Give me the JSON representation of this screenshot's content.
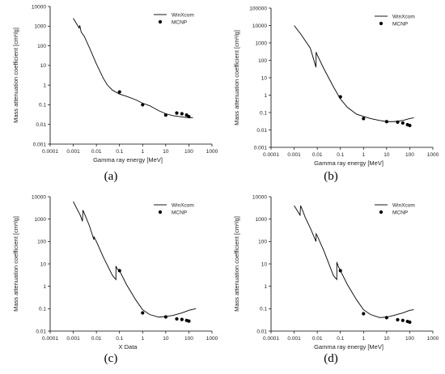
{
  "chart_data": [
    {
      "type": "line",
      "panel_label": "(a)",
      "xlabel": "Gamma ray energy [MeV]",
      "ylabel": "Mass attenuation coefficient [cm²/g]",
      "xscale": "log",
      "yscale": "log",
      "xlim": [
        0.0001,
        1000
      ],
      "ylim": [
        0.001,
        10000
      ],
      "xticks": [
        "0.0001",
        "0.001",
        "0.01",
        "0.1",
        "1",
        "10",
        "100",
        "1000"
      ],
      "yticks": [
        "0.001",
        "0.01",
        "0.1",
        "1",
        "10",
        "100",
        "1000",
        "10000"
      ],
      "legend_position": "top-right",
      "series": [
        {
          "name": "WinXcom",
          "style": "line",
          "x": [
            0.001,
            0.0018,
            0.0019,
            0.0022,
            0.003,
            0.005,
            0.01,
            0.02,
            0.03,
            0.05,
            0.1,
            0.2,
            0.5,
            1,
            2,
            5,
            10,
            20,
            50,
            100,
            150
          ],
          "y": [
            2500,
            800,
            1100,
            500,
            300,
            80,
            12,
            2.2,
            1.0,
            0.55,
            0.35,
            0.27,
            0.18,
            0.12,
            0.09,
            0.05,
            0.035,
            0.028,
            0.024,
            0.022,
            0.022
          ]
        },
        {
          "name": "MCNP",
          "style": "marker",
          "x": [
            0.1,
            1,
            10,
            30,
            50,
            80,
            100
          ],
          "y": [
            0.45,
            0.1,
            0.03,
            0.038,
            0.035,
            0.03,
            0.025
          ]
        }
      ]
    },
    {
      "type": "line",
      "panel_label": "(b)",
      "xlabel": "Gamma ray energy [MeV]",
      "ylabel": "Mass attenuation coefficient [cm²/g]",
      "xscale": "log",
      "yscale": "log",
      "xlim": [
        0.0001,
        1000
      ],
      "ylim": [
        0.001,
        100000
      ],
      "xticks": [
        "0.0001",
        "0.001",
        "0.01",
        "0.1",
        "1",
        "10",
        "100",
        "1000"
      ],
      "yticks": [
        "0.001",
        "0.01",
        "0.1",
        "1",
        "10",
        "100",
        "1000",
        "10000",
        "100000"
      ],
      "legend_position": "top-right",
      "series": [
        {
          "name": "WinXcom",
          "style": "line",
          "x": [
            0.001,
            0.002,
            0.005,
            0.0088,
            0.0089,
            0.01,
            0.02,
            0.05,
            0.1,
            0.2,
            0.5,
            1,
            2,
            5,
            10,
            20,
            50,
            100,
            150
          ],
          "y": [
            10000,
            3000,
            500,
            40,
            300,
            200,
            30,
            3,
            0.6,
            0.2,
            0.08,
            0.06,
            0.045,
            0.035,
            0.03,
            0.03,
            0.035,
            0.045,
            0.05
          ]
        },
        {
          "name": "MCNP",
          "style": "marker",
          "x": [
            0.1,
            1,
            10,
            30,
            50,
            80,
            100
          ],
          "y": [
            0.8,
            0.045,
            0.03,
            0.028,
            0.025,
            0.02,
            0.018
          ]
        }
      ]
    },
    {
      "type": "line",
      "panel_label": "(c)",
      "xlabel": "X Data",
      "ylabel": "Mass attenuation coefficient [cm²/g]",
      "xscale": "log",
      "yscale": "log",
      "xlim": [
        0.0001,
        1000
      ],
      "ylim": [
        0.01,
        10000
      ],
      "xticks": [
        "0.0001",
        "0.001",
        "0.01",
        "0.1",
        "1",
        "10",
        "100",
        "1000"
      ],
      "yticks": [
        "0.01",
        "0.1",
        "1",
        "10",
        "100",
        "1000",
        "10000"
      ],
      "legend_position": "top-right",
      "series": [
        {
          "name": "WinXcom",
          "style": "line",
          "x": [
            0.001,
            0.002,
            0.0025,
            0.0026,
            0.003,
            0.005,
            0.0078,
            0.0079,
            0.01,
            0.02,
            0.05,
            0.0699,
            0.07,
            0.08,
            0.1,
            0.2,
            0.5,
            1,
            2,
            5,
            10,
            20,
            50,
            100,
            200
          ],
          "y": [
            6000,
            1500,
            800,
            2500,
            1800,
            500,
            120,
            160,
            100,
            20,
            3,
            2,
            8,
            6,
            5,
            1.2,
            0.25,
            0.09,
            0.055,
            0.042,
            0.045,
            0.05,
            0.065,
            0.085,
            0.1
          ]
        },
        {
          "name": "MCNP",
          "style": "marker",
          "x": [
            0.1,
            1,
            10,
            30,
            50,
            80,
            100
          ],
          "y": [
            5,
            0.065,
            0.043,
            0.035,
            0.033,
            0.03,
            0.028
          ]
        }
      ]
    },
    {
      "type": "line",
      "panel_label": "(d)",
      "xlabel": "Gamma ray energy [MeV]",
      "ylabel": "Mass attenuation coefficient [cm²/g]",
      "xscale": "log",
      "yscale": "log",
      "xlim": [
        0.0001,
        1000
      ],
      "ylim": [
        0.01,
        10000
      ],
      "xticks": [
        "0.0001",
        "0.001",
        "0.01",
        "0.1",
        "1",
        "10",
        "100",
        "1000"
      ],
      "yticks": [
        "0.01",
        "0.1",
        "1",
        "10",
        "100",
        "1000",
        "10000"
      ],
      "legend_position": "top-right",
      "series": [
        {
          "name": "WinXcom",
          "style": "line",
          "x": [
            0.001,
            0.0018,
            0.0019,
            0.0025,
            0.003,
            0.005,
            0.0088,
            0.0089,
            0.01,
            0.02,
            0.05,
            0.0699,
            0.07,
            0.08,
            0.1,
            0.2,
            0.5,
            1,
            2,
            5,
            10,
            20,
            50,
            100,
            150
          ],
          "y": [
            4000,
            1500,
            4000,
            2000,
            1200,
            400,
            100,
            220,
            180,
            35,
            3,
            2,
            12,
            8,
            5,
            1.2,
            0.25,
            0.09,
            0.055,
            0.04,
            0.042,
            0.05,
            0.065,
            0.085,
            0.09
          ]
        },
        {
          "name": "MCNP",
          "style": "marker",
          "x": [
            0.1,
            1,
            10,
            30,
            50,
            80,
            100
          ],
          "y": [
            5,
            0.06,
            0.04,
            0.032,
            0.03,
            0.027,
            0.025
          ]
        }
      ]
    }
  ]
}
